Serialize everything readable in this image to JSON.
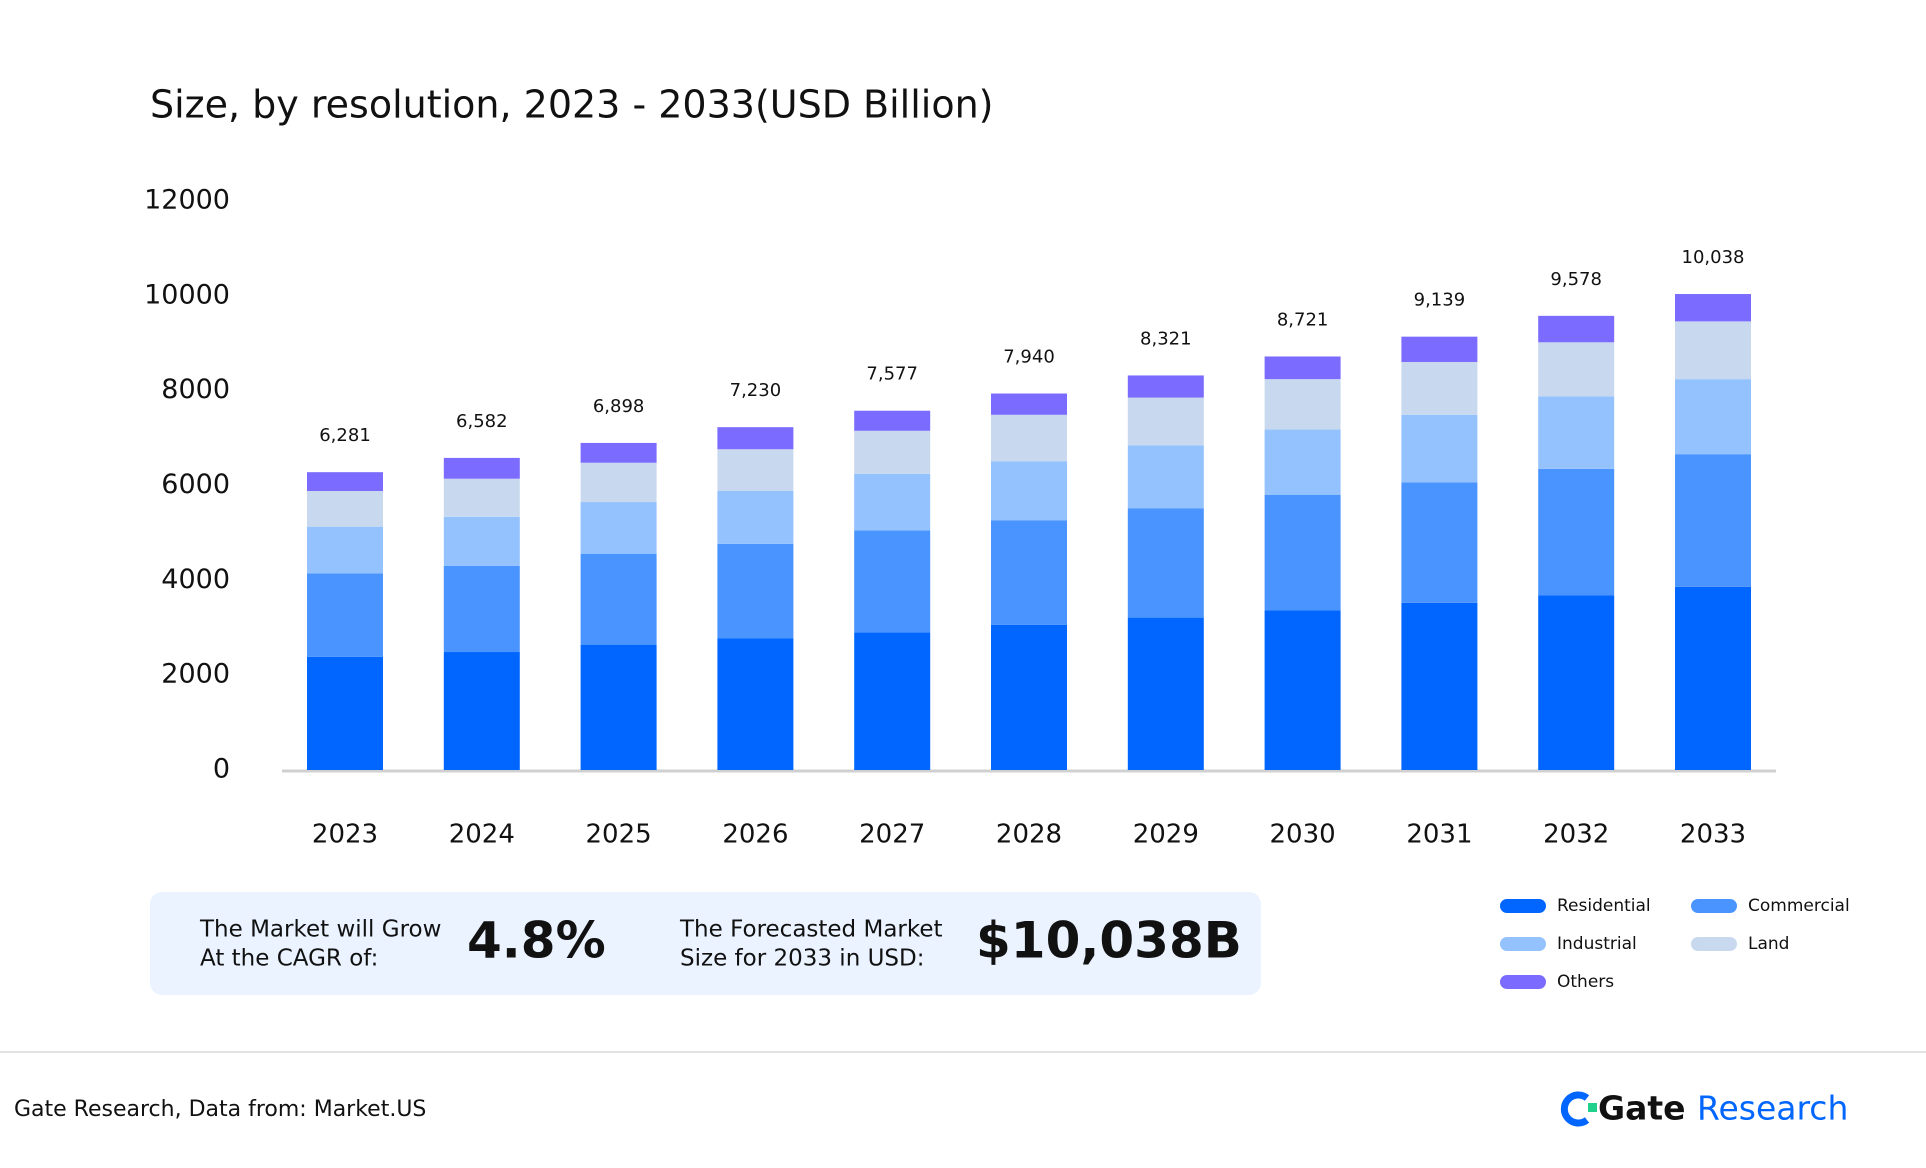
{
  "chart_data": {
    "type": "stacked_bar",
    "title": "Size, by resolution, 2023 - 2033(USD Billion)",
    "categories": [
      "2023",
      "2024",
      "2025",
      "2026",
      "2027",
      "2028",
      "2029",
      "2030",
      "2031",
      "2032",
      "2033"
    ],
    "series": [
      {
        "name": "Residential",
        "color": "#0066ff",
        "values": [
          2385,
          2488,
          2644,
          2773,
          2903,
          3059,
          3214,
          3370,
          3525,
          3681,
          3862
        ]
      },
      {
        "name": "Commercial",
        "color": "#4a94ff",
        "values": [
          1762,
          1815,
          1918,
          1996,
          2151,
          2203,
          2307,
          2436,
          2540,
          2669,
          2799
        ]
      },
      {
        "name": "Industrial",
        "color": "#93c2ff",
        "values": [
          985,
          1037,
          1089,
          1115,
          1193,
          1244,
          1322,
          1374,
          1426,
          1530,
          1582
        ]
      },
      {
        "name": "Land",
        "color": "#c8d9ef",
        "values": [
          752,
          803,
          829,
          881,
          907,
          985,
          1011,
          1063,
          1114,
          1140,
          1218
        ]
      },
      {
        "name": "Others",
        "color": "#7b6cff",
        "values": [
          397,
          439,
          418,
          465,
          423,
          449,
          467,
          478,
          534,
          558,
          577
        ]
      }
    ],
    "totals": {
      "values": [
        6281,
        6582,
        6898,
        7230,
        7577,
        7940,
        8321,
        8721,
        9139,
        9578,
        10038
      ],
      "value_labels": [
        "6,281",
        "6,582",
        "6,898",
        "7,230",
        "7,577",
        "7,940",
        "8,321",
        "8,721",
        "9,139",
        "9,578",
        "10,038"
      ]
    },
    "ylim": [
      0,
      12000
    ],
    "yticks": [
      0,
      2000,
      4000,
      6000,
      8000,
      10000,
      12000
    ],
    "grid": false
  },
  "summary": {
    "cagr_label": [
      "The Market will Grow",
      "At the CAGR of:"
    ],
    "cagr": "4.8%",
    "forecast_label": [
      "The Forecasted Market",
      "Size for 2033 in USD:"
    ],
    "forecast": "$10,038B"
  },
  "footer": {
    "source": "Gate Research, Data from: Market.US",
    "brand": "Gate",
    "brand_suffix": "Research"
  }
}
